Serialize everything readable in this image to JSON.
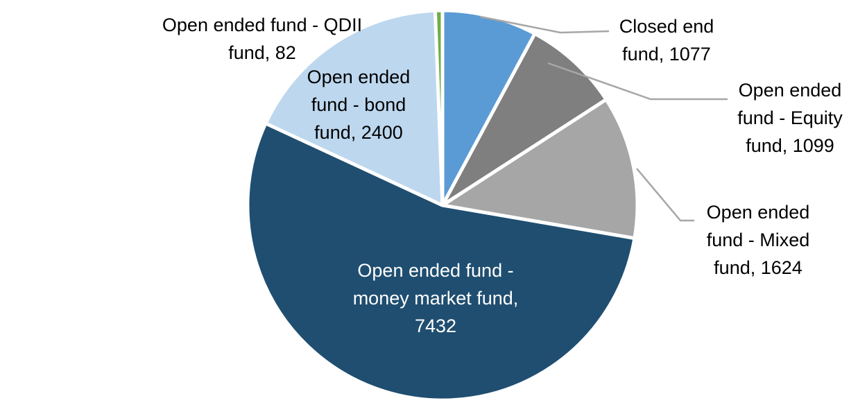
{
  "chart_data": {
    "type": "pie",
    "title": "",
    "legend_position": "none",
    "start_angle_deg": 0,
    "direction": "clockwise",
    "total": 13714,
    "slice_border_color": "#FFFFFF",
    "leader_line_color": "#A6A6A6",
    "series": [
      {
        "name": "Closed end fund",
        "value": 1077,
        "color": "#5B9BD5"
      },
      {
        "name": "Open ended fund - Equity fund",
        "value": 1099,
        "color": "#7F7F7F"
      },
      {
        "name": "Open ended fund - Mixed fund",
        "value": 1624,
        "color": "#A6A6A6"
      },
      {
        "name": "Open ended fund - money market fund",
        "value": 7432,
        "color": "#1F4E70"
      },
      {
        "name": "Open ended fund - bond fund",
        "value": 2400,
        "color": "#BDD7EE"
      },
      {
        "name": "Open ended fund - QDII fund",
        "value": 82,
        "color": "#70AD47"
      }
    ],
    "labels": [
      {
        "lines": [
          "Closed end",
          "fund, 1077"
        ],
        "text_color": "#000000",
        "placement": "outside-leader"
      },
      {
        "lines": [
          "Open ended",
          "fund - Equity",
          "fund, 1099"
        ],
        "text_color": "#000000",
        "placement": "outside-leader"
      },
      {
        "lines": [
          "Open ended",
          "fund - Mixed",
          "fund, 1624"
        ],
        "text_color": "#000000",
        "placement": "outside-leader"
      },
      {
        "lines": [
          "Open ended fund -",
          "money market fund,",
          "7432"
        ],
        "text_color": "#FFFFFF",
        "placement": "inside"
      },
      {
        "lines": [
          "Open ended",
          "fund - bond",
          "fund, 2400"
        ],
        "text_color": "#000000",
        "placement": "inside"
      },
      {
        "lines": [
          "Open ended fund - QDII",
          "fund, 82"
        ],
        "text_color": "#000000",
        "placement": "outside"
      }
    ]
  }
}
